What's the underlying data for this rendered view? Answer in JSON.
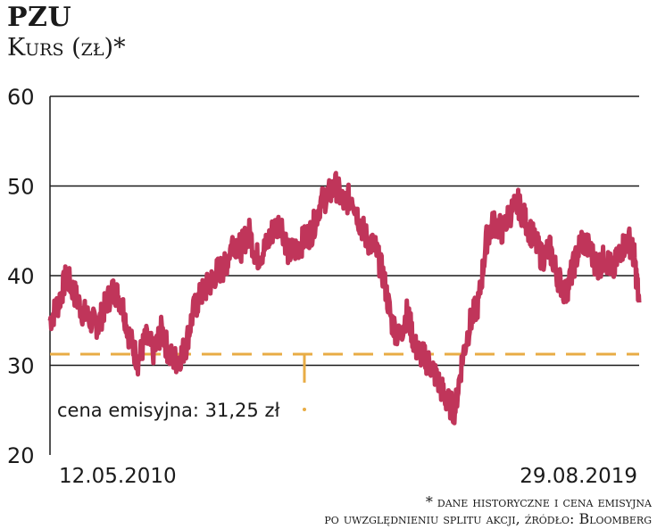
{
  "header": {
    "title": "PZU",
    "subtitle": "Kurs (zł)*"
  },
  "footnote": {
    "line1": "* dane historyczne i cena emisyjna",
    "line2": "po uwzględnieniu splitu akcji, źródło: Bloomberg"
  },
  "colors": {
    "series": "#c0355a",
    "reference": "#e8ac45",
    "grid": "#1a1a1a"
  },
  "chart_data": {
    "type": "line",
    "ylim": [
      20,
      60
    ],
    "yticks": [
      20,
      30,
      40,
      50,
      60
    ],
    "x_start_label": "12.05.2010",
    "x_end_label": "29.08.2019",
    "reference_line": {
      "value": 31.25,
      "label": "cena emisyjna: 31,25 zł"
    },
    "series": [
      {
        "x": [
          "2010-05-12",
          "2010-07-01",
          "2010-08-15",
          "2010-10-01",
          "2010-11-15",
          "2011-01-01",
          "2011-02-15",
          "2011-04-01",
          "2011-05-15",
          "2011-07-01",
          "2011-08-15",
          "2011-10-01",
          "2011-11-15",
          "2012-01-01",
          "2012-02-15",
          "2012-04-01",
          "2012-05-15",
          "2012-07-01",
          "2012-08-15",
          "2012-10-01",
          "2012-11-15",
          "2013-01-01",
          "2013-02-15",
          "2013-04-01",
          "2013-05-15",
          "2013-07-01",
          "2013-08-15",
          "2013-10-01",
          "2013-11-15",
          "2014-01-01",
          "2014-02-15",
          "2014-04-01",
          "2014-05-15",
          "2014-07-01",
          "2014-08-15",
          "2014-10-01",
          "2014-11-15",
          "2015-01-01",
          "2015-02-15",
          "2015-04-01",
          "2015-05-15",
          "2015-07-01",
          "2015-08-15",
          "2015-10-01",
          "2015-11-15",
          "2016-01-01",
          "2016-02-15",
          "2016-04-01",
          "2016-05-15",
          "2016-07-01",
          "2016-08-15",
          "2016-10-01",
          "2016-11-15",
          "2017-01-01",
          "2017-02-15",
          "2017-04-01",
          "2017-05-15",
          "2017-07-01",
          "2017-08-15",
          "2017-10-01",
          "2017-11-15",
          "2018-01-01",
          "2018-02-15",
          "2018-04-01",
          "2018-05-15",
          "2018-07-01",
          "2018-08-15",
          "2018-10-01",
          "2018-11-15",
          "2019-01-01",
          "2019-02-15",
          "2019-04-01",
          "2019-05-15",
          "2019-07-01",
          "2019-08-01",
          "2019-08-29"
        ],
        "values": [
          35,
          37,
          40,
          38,
          36,
          35,
          34.5,
          37,
          38.5,
          37,
          33,
          30.5,
          33,
          31.5,
          34,
          31,
          30.5,
          32,
          36,
          38,
          39,
          40.5,
          41,
          44,
          43,
          45,
          42,
          43,
          45,
          46,
          42.5,
          43,
          44,
          45,
          48,
          49,
          50,
          48,
          49,
          46,
          44,
          43,
          40,
          35,
          33,
          36,
          32,
          31,
          30,
          28,
          26,
          25,
          31,
          35,
          37,
          44,
          46,
          45,
          47,
          48,
          46,
          44,
          42,
          43,
          40,
          38,
          41,
          44,
          43,
          41,
          42,
          40.5,
          43,
          44,
          42,
          37
        ]
      }
    ]
  }
}
